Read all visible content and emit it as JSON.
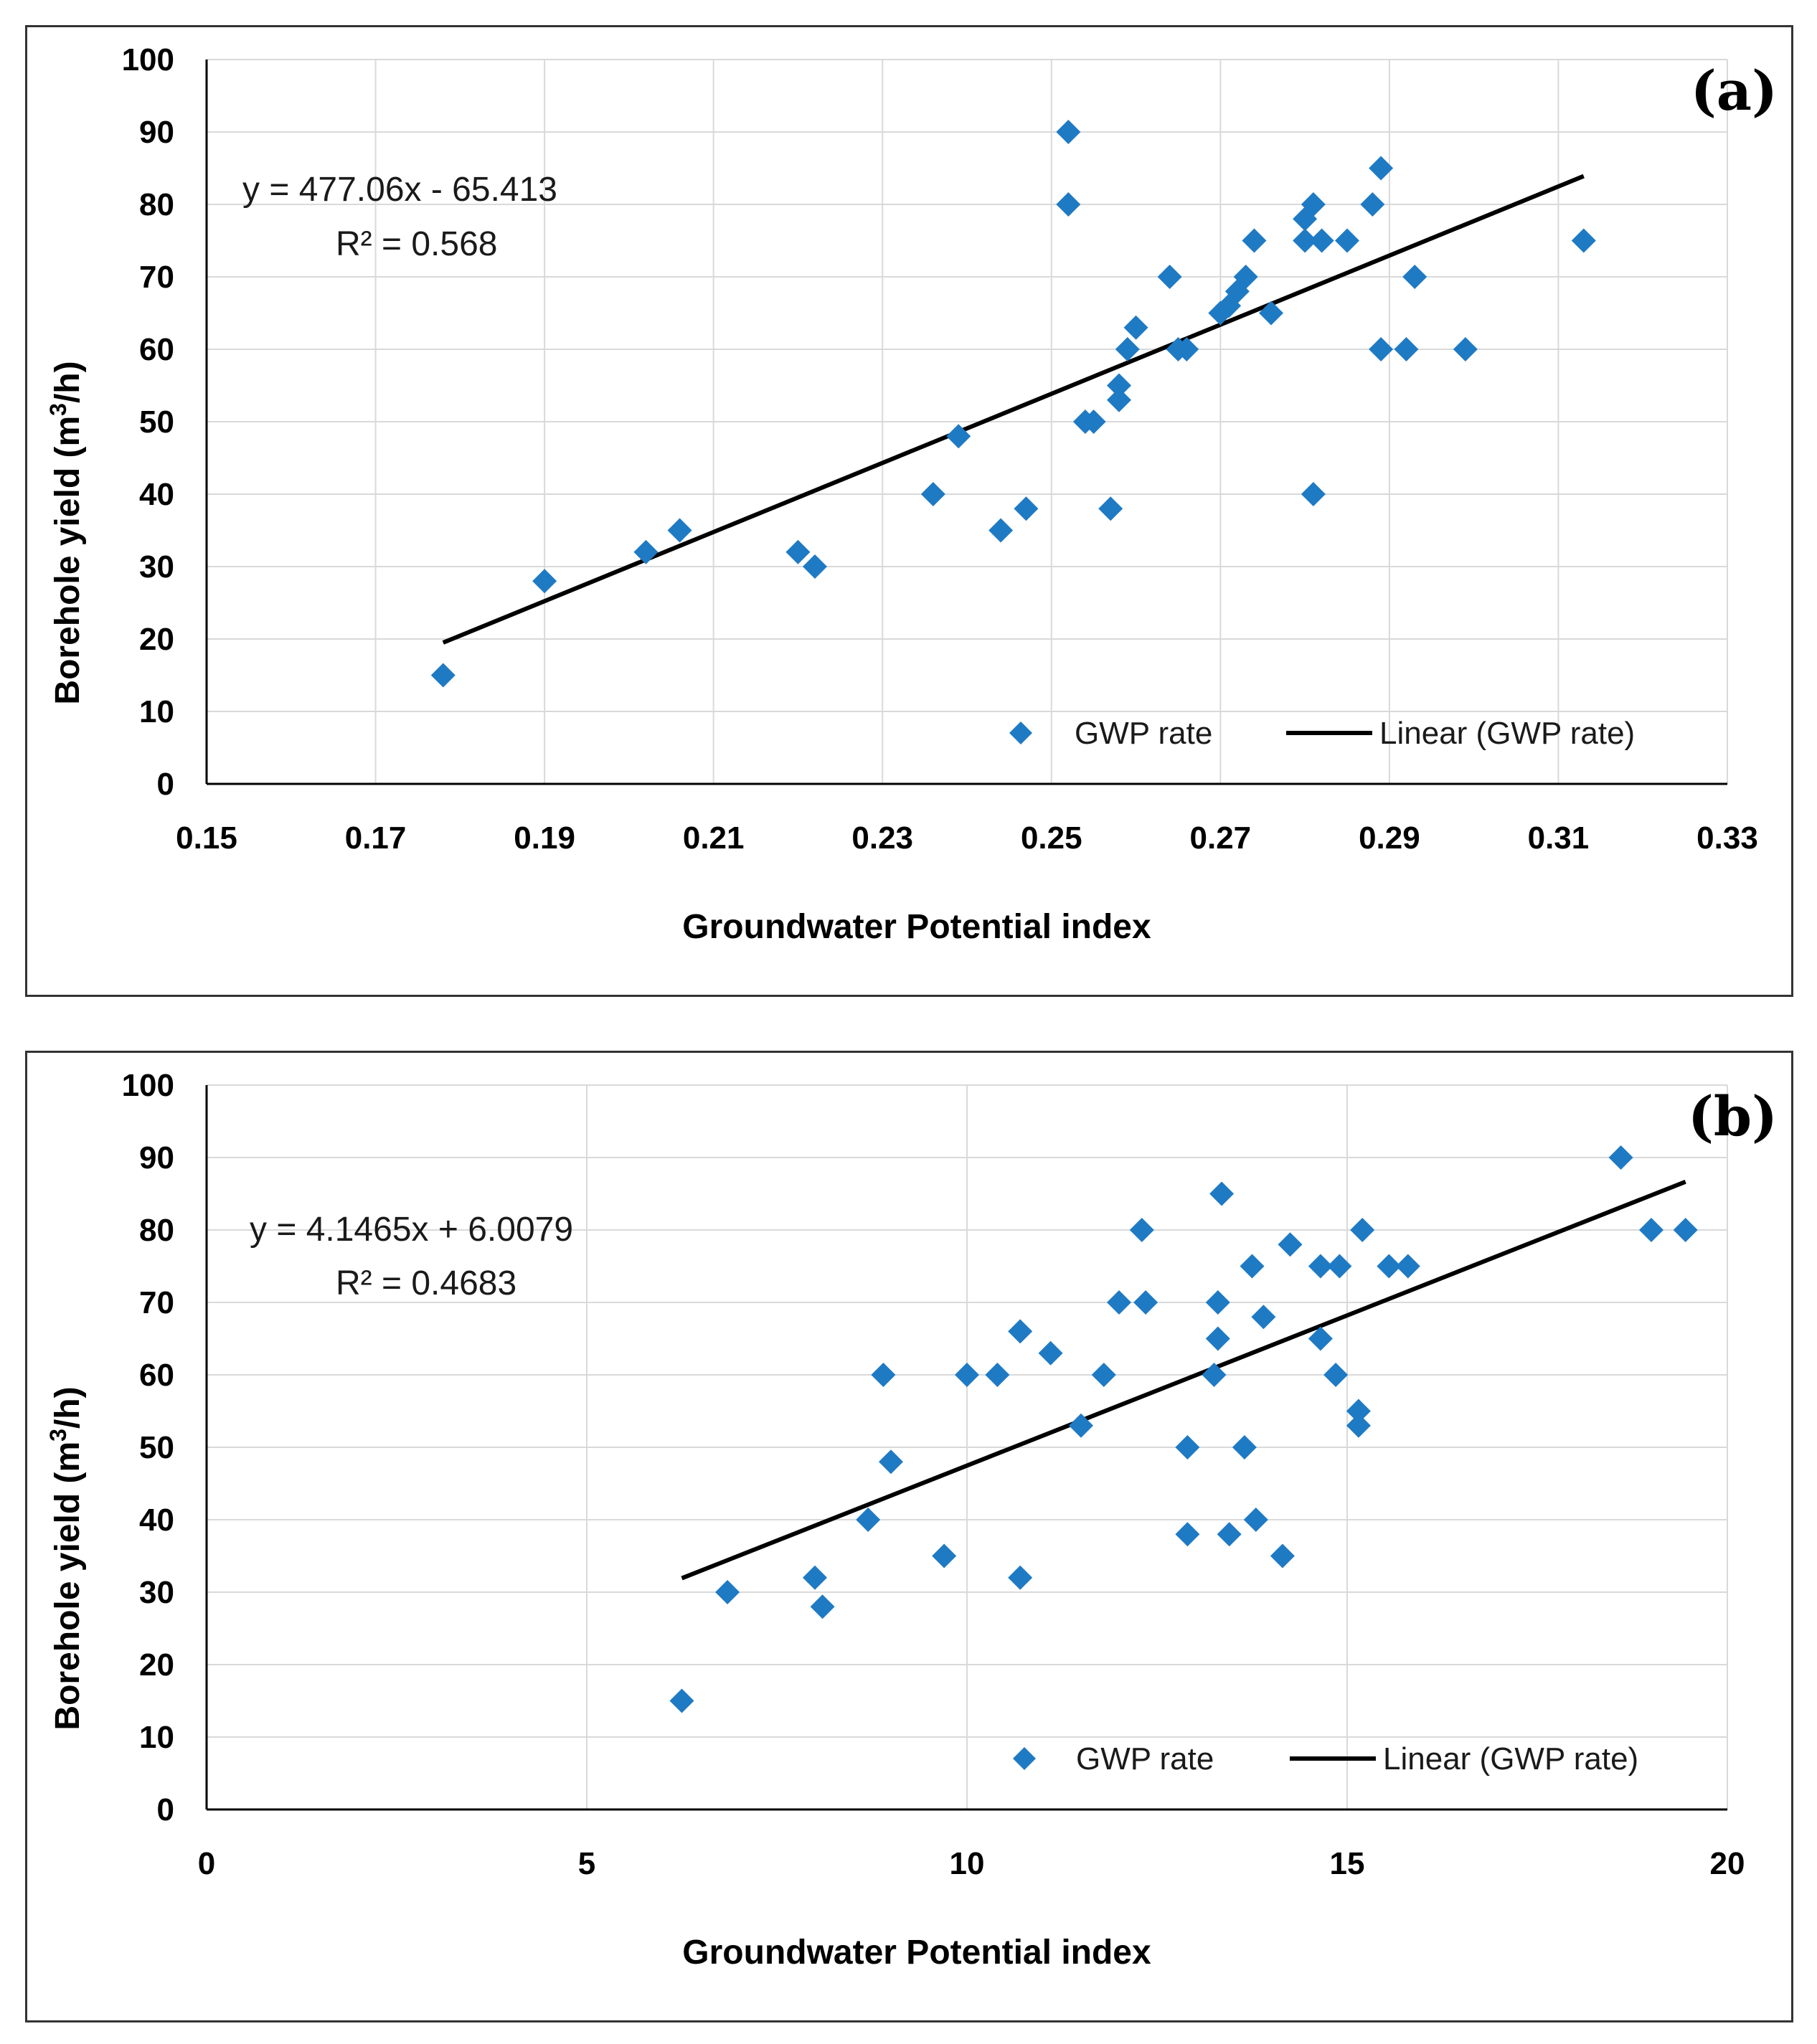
{
  "chart_data": [
    {
      "id": "a",
      "type": "scatter",
      "panel_label": "(a)",
      "xlabel": "Groundwater Potential index",
      "ylabel": "Borehole yield (m³/h)",
      "ylabel_parts": {
        "base": "Borehole yield (m",
        "sup": "3",
        "tail": "/h)"
      },
      "xlim": [
        0.15,
        0.33
      ],
      "ylim": [
        0,
        100
      ],
      "x_ticks": [
        0.15,
        0.17,
        0.19,
        0.21,
        0.23,
        0.25,
        0.27,
        0.29,
        0.31,
        0.33
      ],
      "x_tick_labels": [
        "0.15",
        "0.17",
        "0.19",
        "0.21",
        "0.23",
        "0.25",
        "0.27",
        "0.29",
        "0.31",
        "0.33"
      ],
      "y_ticks": [
        0,
        10,
        20,
        30,
        40,
        50,
        60,
        70,
        80,
        90,
        100
      ],
      "y_tick_labels": [
        "0",
        "10",
        "20",
        "30",
        "40",
        "50",
        "60",
        "70",
        "80",
        "90",
        "100"
      ],
      "grid": true,
      "series": [
        {
          "name": "GWP rate",
          "color": "#1f7ac4",
          "marker": "diamond",
          "points": [
            [
              0.178,
              15
            ],
            [
              0.19,
              28
            ],
            [
              0.202,
              32
            ],
            [
              0.206,
              35
            ],
            [
              0.22,
              32
            ],
            [
              0.222,
              30
            ],
            [
              0.236,
              40
            ],
            [
              0.239,
              48
            ],
            [
              0.244,
              35
            ],
            [
              0.247,
              38
            ],
            [
              0.252,
              90
            ],
            [
              0.252,
              80
            ],
            [
              0.254,
              50
            ],
            [
              0.255,
              50
            ],
            [
              0.257,
              38
            ],
            [
              0.258,
              53
            ],
            [
              0.258,
              55
            ],
            [
              0.259,
              60
            ],
            [
              0.26,
              63
            ],
            [
              0.264,
              70
            ],
            [
              0.265,
              60
            ],
            [
              0.266,
              60
            ],
            [
              0.27,
              65
            ],
            [
              0.271,
              66
            ],
            [
              0.272,
              68
            ],
            [
              0.273,
              70
            ],
            [
              0.274,
              75
            ],
            [
              0.276,
              65
            ],
            [
              0.28,
              75
            ],
            [
              0.28,
              78
            ],
            [
              0.281,
              80
            ],
            [
              0.281,
              40
            ],
            [
              0.282,
              75
            ],
            [
              0.285,
              75
            ],
            [
              0.288,
              80
            ],
            [
              0.289,
              85
            ],
            [
              0.289,
              60
            ],
            [
              0.292,
              60
            ],
            [
              0.293,
              70
            ],
            [
              0.299,
              60
            ],
            [
              0.313,
              75
            ]
          ]
        }
      ],
      "trendline": {
        "name": "Linear (GWP rate)",
        "slope": 477.06,
        "intercept": -65.413,
        "x_range": [
          0.178,
          0.313
        ]
      },
      "equation": "y = 477.06x - 65.413",
      "r2": "R² = 0.568",
      "legend": {
        "position": "bottom-right",
        "marker_label": "GWP rate",
        "line_label": "Linear (GWP rate)"
      }
    },
    {
      "id": "b",
      "type": "scatter",
      "panel_label": "(b)",
      "xlabel": "Groundwater Potential index",
      "ylabel": "Borehole yield (m³/h)",
      "ylabel_parts": {
        "base": "Borehole yield (m",
        "sup": "3",
        "tail": "/h)"
      },
      "xlim": [
        0,
        20
      ],
      "ylim": [
        0,
        100
      ],
      "x_ticks": [
        0,
        5,
        10,
        15,
        20
      ],
      "x_tick_labels": [
        "0",
        "5",
        "10",
        "15",
        "20"
      ],
      "y_ticks": [
        0,
        10,
        20,
        30,
        40,
        50,
        60,
        70,
        80,
        90,
        100
      ],
      "y_tick_labels": [
        "0",
        "10",
        "20",
        "30",
        "40",
        "50",
        "60",
        "70",
        "80",
        "90",
        "100"
      ],
      "grid": true,
      "series": [
        {
          "name": "GWP rate",
          "color": "#1f7ac4",
          "marker": "diamond",
          "points": [
            [
              6.25,
              15
            ],
            [
              6.85,
              30
            ],
            [
              8.0,
              32
            ],
            [
              8.1,
              28
            ],
            [
              8.7,
              40
            ],
            [
              8.9,
              60
            ],
            [
              9.0,
              48
            ],
            [
              9.7,
              35
            ],
            [
              10.0,
              60
            ],
            [
              10.4,
              60
            ],
            [
              10.7,
              66
            ],
            [
              10.7,
              32
            ],
            [
              11.1,
              63
            ],
            [
              11.5,
              53
            ],
            [
              11.8,
              60
            ],
            [
              12.0,
              70
            ],
            [
              12.3,
              80
            ],
            [
              12.35,
              70
            ],
            [
              12.9,
              50
            ],
            [
              12.9,
              38
            ],
            [
              13.25,
              60
            ],
            [
              13.3,
              65
            ],
            [
              13.3,
              70
            ],
            [
              13.35,
              85
            ],
            [
              13.45,
              38
            ],
            [
              13.65,
              50
            ],
            [
              13.75,
              75
            ],
            [
              13.8,
              40
            ],
            [
              13.9,
              68
            ],
            [
              14.15,
              35
            ],
            [
              14.25,
              78
            ],
            [
              14.65,
              75
            ],
            [
              14.65,
              65
            ],
            [
              14.85,
              60
            ],
            [
              14.9,
              75
            ],
            [
              15.15,
              55
            ],
            [
              15.15,
              53
            ],
            [
              15.2,
              80
            ],
            [
              15.55,
              75
            ],
            [
              15.8,
              75
            ],
            [
              18.6,
              90
            ],
            [
              19.0,
              80
            ],
            [
              19.45,
              80
            ]
          ]
        }
      ],
      "trendline": {
        "name": "Linear (GWP rate)",
        "slope": 4.1465,
        "intercept": 6.0079,
        "x_range": [
          6.25,
          19.45
        ]
      },
      "equation": "y = 4.1465x + 6.0079",
      "r2": "R² = 0.4683",
      "legend": {
        "position": "bottom-right",
        "marker_label": "GWP rate",
        "line_label": "Linear (GWP rate)"
      }
    }
  ]
}
